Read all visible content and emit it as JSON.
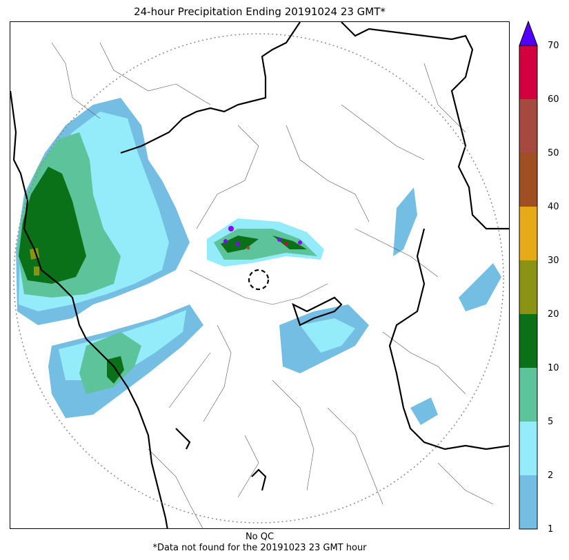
{
  "title": "24-hour Precipitation Ending 20191024 23 GMT*",
  "footer": {
    "qc": "No QC",
    "note": "*Data not found for the 20191023 23 GMT hour"
  },
  "colorbar": {
    "ticks": [
      "1",
      "2",
      "5",
      "10",
      "20",
      "30",
      "40",
      "50",
      "60",
      "70"
    ],
    "colors": [
      "#74bde3",
      "#94ebfa",
      "#5cc39a",
      "#0b7118",
      "#8b9315",
      "#e6a917",
      "#9f4f22",
      "#a64a3f",
      "#d30040"
    ],
    "extend_color": "#5200ff"
  },
  "legend_colors": {
    "light_blue": "#74bde3",
    "cyan": "#94ebfa",
    "light_green": "#5cc39a",
    "dark_green": "#0b7118",
    "olive": "#8b9315",
    "purple": "#8800ff",
    "border_color": "#000000",
    "county_lines": "#555555",
    "range_ring": "#888888"
  }
}
